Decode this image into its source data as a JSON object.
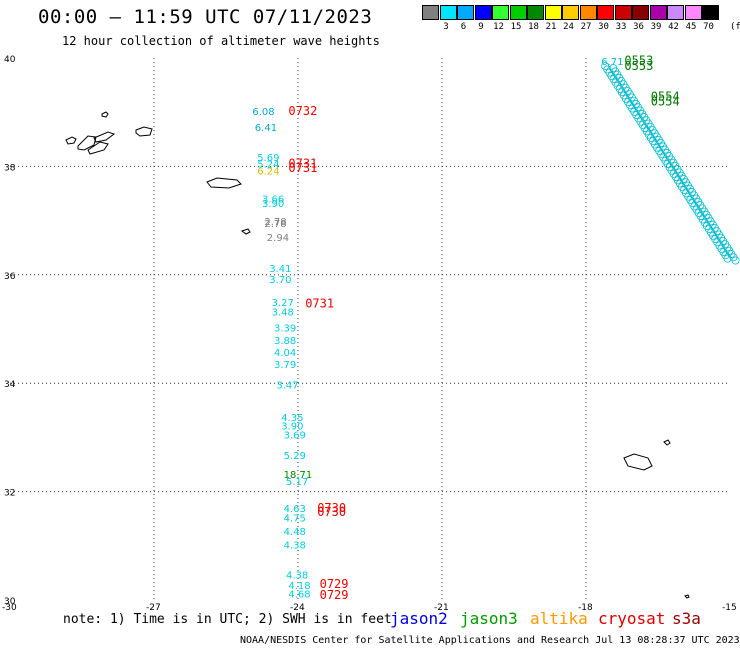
{
  "header": {
    "title": "00:00 – 11:59 UTC 07/11/2023",
    "subtitle": "12 hour collection of altimeter wave heights"
  },
  "scale": {
    "colors": [
      "#808080",
      "#00e5ff",
      "#00aaff",
      "#0000ff",
      "#33ff33",
      "#00cc00",
      "#008800",
      "#ffff00",
      "#ffcc00",
      "#ff8800",
      "#ff0000",
      "#cc0000",
      "#880000",
      "#aa00aa",
      "#cc88ff",
      "#ff88ff",
      "#000000"
    ],
    "labels": [
      "3",
      "6",
      "9",
      "12",
      "15",
      "18",
      "21",
      "24",
      "27",
      "30",
      "33",
      "36",
      "39",
      "42",
      "45",
      "70"
    ],
    "unit": "(ft)"
  },
  "axes": {
    "lat_labels": [
      "40",
      "38",
      "36",
      "34",
      "32",
      "30"
    ],
    "lon_labels": [
      "-30",
      "-27",
      "-24",
      "-21",
      "-18",
      "-15"
    ]
  },
  "track_points": [
    {
      "t": "6.08",
      "c": "#00aacc",
      "lat": 38.95,
      "lon": -24.95
    },
    {
      "t": "6.41",
      "c": "#00aacc",
      "lat": 38.65,
      "lon": -24.9
    },
    {
      "t": "5.69",
      "c": "#00ccdd",
      "lat": 38.1,
      "lon": -24.85
    },
    {
      "t": "5.24",
      "c": "#00ccdd",
      "lat": 37.98,
      "lon": -24.85
    },
    {
      "t": "6.24",
      "c": "#ddbb00",
      "lat": 37.85,
      "lon": -24.85
    },
    {
      "t": "3.66",
      "c": "#00ccdd",
      "lat": 37.33,
      "lon": -24.75
    },
    {
      "t": "3.90",
      "c": "#00ccdd",
      "lat": 37.25,
      "lon": -24.75
    },
    {
      "t": "2.78",
      "c": "#808080",
      "lat": 36.92,
      "lon": -24.7
    },
    {
      "t": "2.78",
      "c": "#808080",
      "lat": 36.88,
      "lon": -24.7
    },
    {
      "t": "2.94",
      "c": "#808080",
      "lat": 36.62,
      "lon": -24.65
    },
    {
      "t": "3.41",
      "c": "#00ccdd",
      "lat": 36.05,
      "lon": -24.6
    },
    {
      "t": "3.70",
      "c": "#00ccdd",
      "lat": 35.85,
      "lon": -24.6
    },
    {
      "t": "3.27",
      "c": "#00ccdd",
      "lat": 35.42,
      "lon": -24.55
    },
    {
      "t": "3.48",
      "c": "#00ccdd",
      "lat": 35.25,
      "lon": -24.55
    },
    {
      "t": "3.39",
      "c": "#00ccdd",
      "lat": 34.95,
      "lon": -24.5
    },
    {
      "t": "3.88",
      "c": "#00ccdd",
      "lat": 34.72,
      "lon": -24.5
    },
    {
      "t": "4.04",
      "c": "#00ccdd",
      "lat": 34.5,
      "lon": -24.5
    },
    {
      "t": "3.79",
      "c": "#00ccdd",
      "lat": 34.28,
      "lon": -24.5
    },
    {
      "t": "3.47",
      "c": "#00ccdd",
      "lat": 33.9,
      "lon": -24.45
    },
    {
      "t": "4.35",
      "c": "#00ccdd",
      "lat": 33.3,
      "lon": -24.35
    },
    {
      "t": "3.90",
      "c": "#00ccdd",
      "lat": 33.15,
      "lon": -24.35
    },
    {
      "t": "3.69",
      "c": "#00ccdd",
      "lat": 32.98,
      "lon": -24.3
    },
    {
      "t": "5.29",
      "c": "#00ccdd",
      "lat": 32.6,
      "lon": -24.3
    },
    {
      "t": "18.71",
      "c": "#008800",
      "lat": 32.25,
      "lon": -24.3
    },
    {
      "t": "5.17",
      "c": "#00ccdd",
      "lat": 32.12,
      "lon": -24.25
    },
    {
      "t": "4.63",
      "c": "#00ccdd",
      "lat": 31.62,
      "lon": -24.3
    },
    {
      "t": "4.75",
      "c": "#00ccdd",
      "lat": 31.45,
      "lon": -24.3
    },
    {
      "t": "4.48",
      "c": "#00ccdd",
      "lat": 31.2,
      "lon": -24.3
    },
    {
      "t": "4.38",
      "c": "#00ccdd",
      "lat": 30.95,
      "lon": -24.3
    },
    {
      "t": "4.38",
      "c": "#00ccdd",
      "lat": 30.4,
      "lon": -24.25
    },
    {
      "t": "4.18",
      "c": "#00ccdd",
      "lat": 30.2,
      "lon": -24.2
    },
    {
      "t": "4.68",
      "c": "#00ccdd",
      "lat": 30.05,
      "lon": -24.2
    }
  ],
  "time_tags": [
    {
      "t": "0732",
      "c": "#ee0000",
      "lat": 38.95,
      "lon": -24.2
    },
    {
      "t": "0731",
      "c": "#ee0000",
      "lat": 37.98,
      "lon": -24.2
    },
    {
      "t": "0731",
      "c": "#ee0000",
      "lat": 37.9,
      "lon": -24.2
    },
    {
      "t": "0731",
      "c": "#ee0000",
      "lat": 35.4,
      "lon": -23.85
    },
    {
      "t": "0730",
      "c": "#ee0000",
      "lat": 31.62,
      "lon": -23.6
    },
    {
      "t": "0730",
      "c": "#ee0000",
      "lat": 31.55,
      "lon": -23.6
    },
    {
      "t": "0729",
      "c": "#ee0000",
      "lat": 30.22,
      "lon": -23.55
    },
    {
      "t": "0729",
      "c": "#ee0000",
      "lat": 30.02,
      "lon": -23.55
    },
    {
      "t": "0553",
      "c": "#007700",
      "lat": 39.88,
      "lon": -17.2
    },
    {
      "t": "0553",
      "c": "#007700",
      "lat": 39.78,
      "lon": -17.2
    },
    {
      "t": "0554",
      "c": "#007700",
      "lat": 39.22,
      "lon": -16.65
    },
    {
      "t": "0554",
      "c": "#007700",
      "lat": 39.12,
      "lon": -16.65
    }
  ],
  "diag_track": {
    "color": "#00bbcc",
    "start_label": "6.71",
    "start": {
      "lat": 39.85,
      "lon": -17.6
    },
    "end": {
      "lat": 36.3,
      "lon": -15.05
    }
  },
  "footer": {
    "note": "note: 1) Time is in UTC; 2) SWH is in feet",
    "satellites": [
      {
        "name": "jason2",
        "color": "#0000dd"
      },
      {
        "name": "jason3",
        "color": "#009900"
      },
      {
        "name": "altika",
        "color": "#ff9900"
      },
      {
        "name": "cryosat",
        "color": "#dd0000"
      },
      {
        "name": "s3a",
        "color": "#990000"
      }
    ],
    "credit": "NOAA/NESDIS Center for Satellite Applications and Research    Jul 13 08:28:37 UTC 2023"
  }
}
